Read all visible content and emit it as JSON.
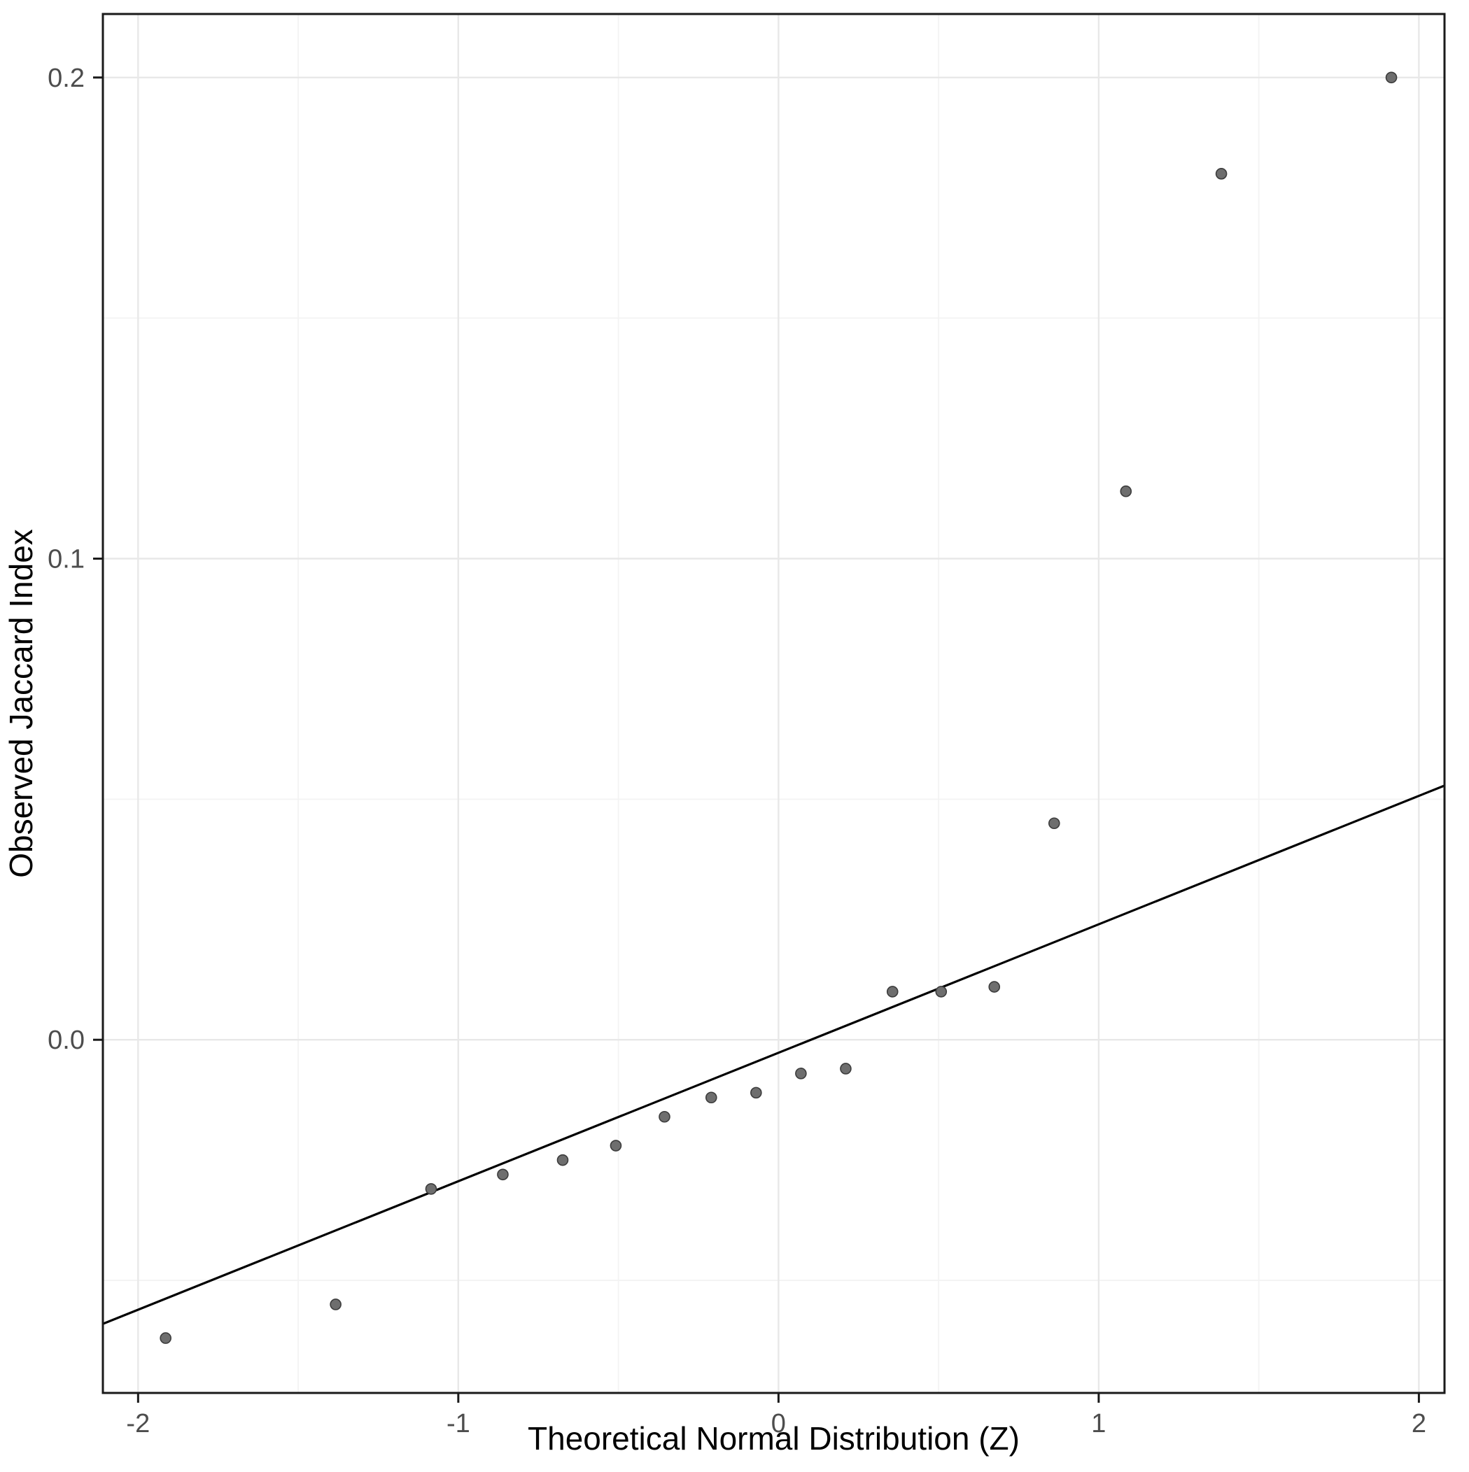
{
  "chart_data": {
    "type": "scatter",
    "title": "",
    "xlabel": "Theoretical Normal Distribution (Z)",
    "ylabel": "Observed Jaccard Index",
    "xlim": [
      -2.11,
      2.08
    ],
    "ylim": [
      -0.0734,
      0.2132
    ],
    "grid": true,
    "legend": "none",
    "x_ticks": [
      {
        "value": -2,
        "label": "-2"
      },
      {
        "value": -1,
        "label": "-1"
      },
      {
        "value": 0,
        "label": "0"
      },
      {
        "value": 1,
        "label": "1"
      },
      {
        "value": 2,
        "label": "2"
      }
    ],
    "y_ticks": [
      {
        "value": 0.0,
        "label": "0.0"
      },
      {
        "value": 0.1,
        "label": "0.1"
      },
      {
        "value": 0.2,
        "label": "0.2"
      }
    ],
    "x_minor": [
      -1.5,
      -0.5,
      0.5,
      1.5
    ],
    "y_minor": [
      -0.05,
      0.05,
      0.15
    ],
    "points": [
      [
        -1.914,
        -0.062
      ],
      [
        -1.383,
        -0.055
      ],
      [
        -1.085,
        -0.031
      ],
      [
        -0.861,
        -0.028
      ],
      [
        -0.674,
        -0.025
      ],
      [
        -0.508,
        -0.022
      ],
      [
        -0.356,
        -0.016
      ],
      [
        -0.21,
        -0.012
      ],
      [
        -0.07,
        -0.011
      ],
      [
        0.07,
        -0.007
      ],
      [
        0.21,
        -0.006
      ],
      [
        0.356,
        0.01
      ],
      [
        0.508,
        0.01
      ],
      [
        0.674,
        0.011
      ],
      [
        0.861,
        0.045
      ],
      [
        1.085,
        0.114
      ],
      [
        1.383,
        0.18
      ],
      [
        1.914,
        0.2
      ]
    ],
    "reference_line": {
      "slope": 0.0267,
      "intercept": -0.0027,
      "color": "#000000",
      "width": 3.2
    },
    "point_style": {
      "fill": "#6e6e6e",
      "stroke": "#3c3c3c",
      "radius": 7.5,
      "stroke_width": 1.6
    },
    "colors": {
      "background": "#ffffff",
      "panel_background": "#ffffff",
      "major_grid": "#e8e8e8",
      "minor_grid": "#f3f3f3",
      "panel_border": "#1a1a1a",
      "axis_line": "#1a1a1a",
      "tick_label": "#4d4d4d",
      "axis_title": "#000000"
    }
  }
}
